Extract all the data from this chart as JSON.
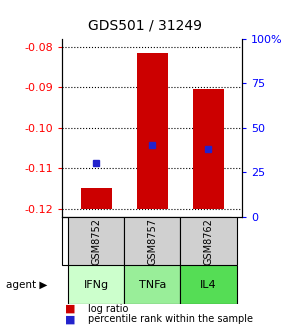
{
  "title": "GDS501 / 31249",
  "samples": [
    "GSM8752",
    "GSM8757",
    "GSM8762"
  ],
  "agents": [
    "IFNg",
    "TNFa",
    "IL4"
  ],
  "agent_colors": [
    "#ccffcc",
    "#99ee99",
    "#55dd55"
  ],
  "log_ratios": [
    -0.1148,
    -0.0815,
    -0.0905
  ],
  "baseline": -0.12,
  "percentile_ranks": [
    0.3,
    0.4,
    0.38
  ],
  "ylim_left": [
    -0.122,
    -0.078
  ],
  "yticks_left": [
    -0.12,
    -0.11,
    -0.1,
    -0.09,
    -0.08
  ],
  "yticks_right_pct": [
    0,
    25,
    50,
    75,
    100
  ],
  "bar_color": "#cc0000",
  "marker_color": "#2222cc",
  "gsm_bg": "#d0d0d0",
  "legend_log_ratio": "log ratio",
  "legend_percentile": "percentile rank within the sample"
}
